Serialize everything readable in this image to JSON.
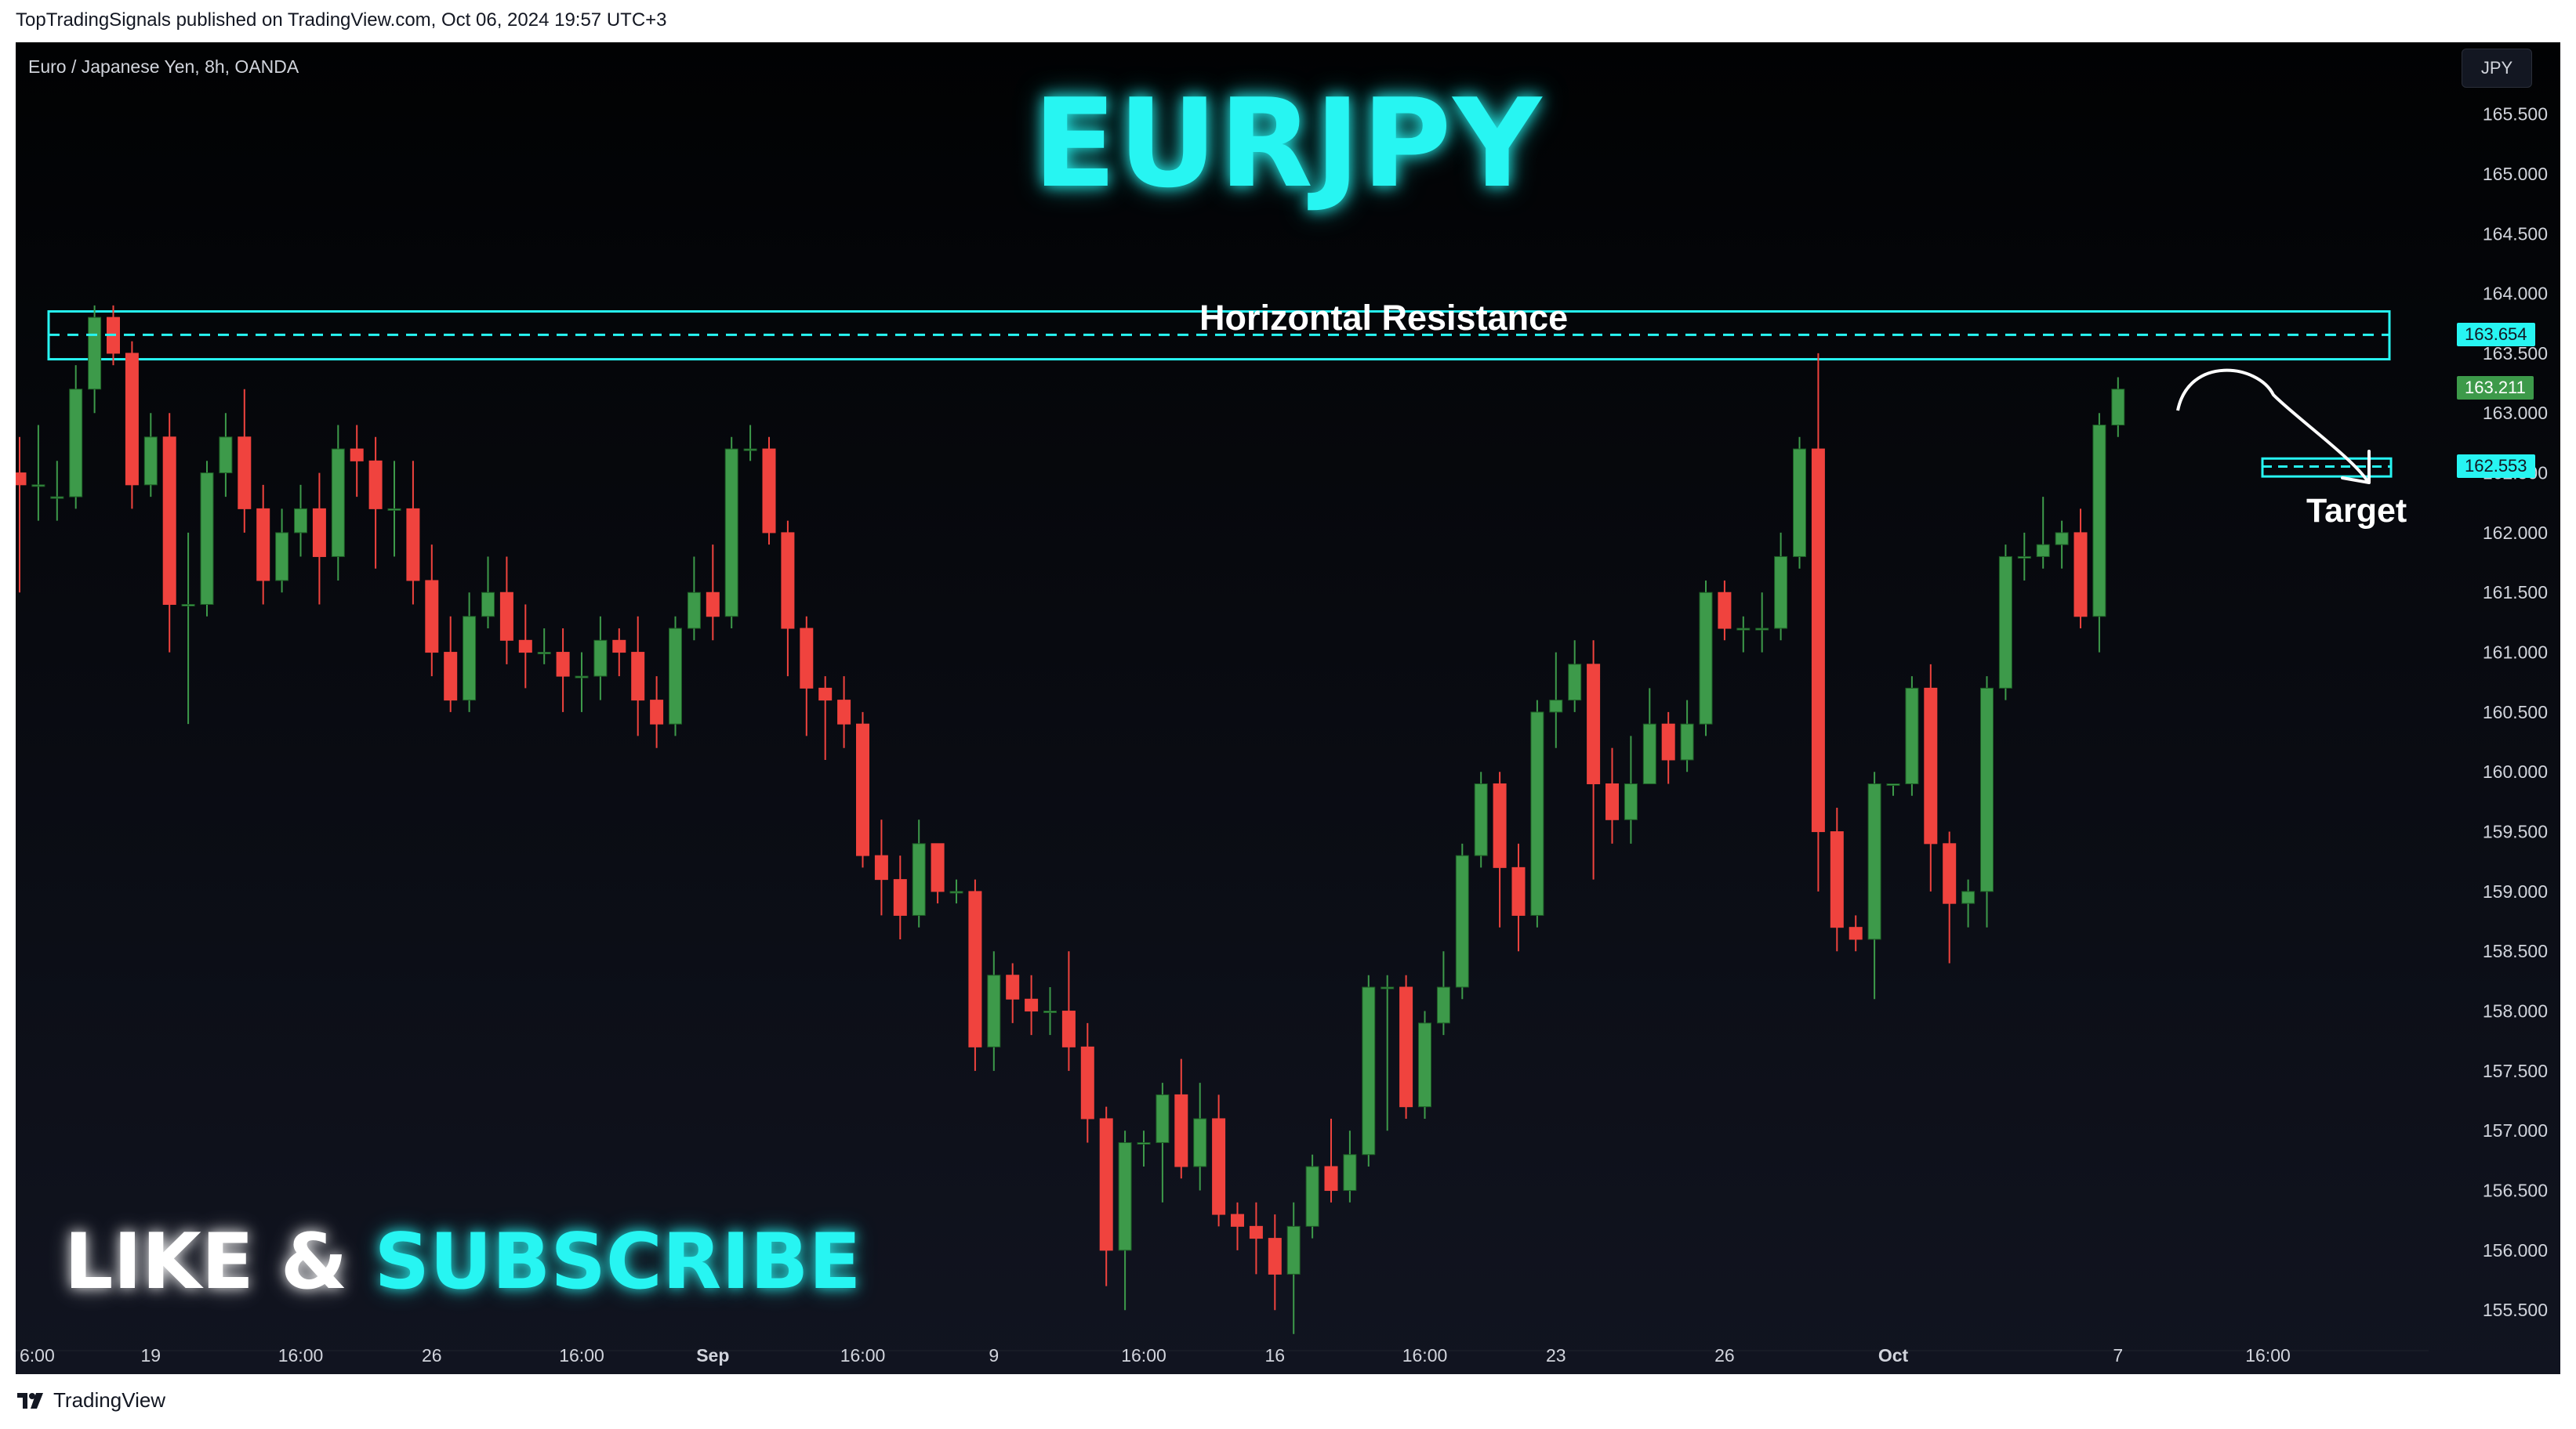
{
  "header": {
    "published_text": "TopTradingSignals published on TradingView.com, Oct 06, 2024 19:57 UTC+3"
  },
  "legend": {
    "symbol_text": "Euro / Japanese Yen, 8h, OANDA"
  },
  "currency_button": {
    "label": "JPY"
  },
  "annotations": {
    "title": "EURJPY",
    "resistance_label": "Horizontal Resistance",
    "target_label": "Target",
    "like_text": "LIKE &",
    "subscribe_text": "SUBSCRIBE"
  },
  "footer": {
    "brand": "TradingView"
  },
  "colors": {
    "up": "#26a69a",
    "up_fill": "#3d9a4a",
    "down": "#f0433e",
    "accent": "#27f5f2",
    "background": "#0b0d14"
  },
  "chart_data": {
    "type": "candlestick",
    "symbol": "EURJPY",
    "interval": "8h",
    "source": "OANDA",
    "y_axis": {
      "ylim": [
        155.2,
        166.1
      ],
      "tick_values": [
        155.5,
        156.0,
        156.5,
        157.0,
        157.5,
        158.0,
        158.5,
        159.0,
        159.5,
        160.0,
        160.5,
        161.0,
        161.5,
        162.0,
        162.5,
        163.0,
        163.5,
        164.0,
        164.5,
        165.0,
        165.5
      ],
      "tick_labels": [
        "155.500",
        "156.000",
        "156.500",
        "157.000",
        "157.500",
        "158.000",
        "158.500",
        "159.000",
        "159.500",
        "160.000",
        "160.500",
        "161.000",
        "161.500",
        "162.000",
        "162.500",
        "163.000",
        "163.500",
        "164.000",
        "164.500",
        "165.000",
        "165.500"
      ]
    },
    "x_axis": {
      "tick_labels": [
        {
          "label": "6:00",
          "bar": 0
        },
        {
          "label": "19",
          "bar": 7
        },
        {
          "label": "16:00",
          "bar": 15
        },
        {
          "label": "26",
          "bar": 22
        },
        {
          "label": "16:00",
          "bar": 30
        },
        {
          "label": "Sep",
          "bar": 37
        },
        {
          "label": "16:00",
          "bar": 45
        },
        {
          "label": "9",
          "bar": 52
        },
        {
          "label": "16:00",
          "bar": 60
        },
        {
          "label": "16",
          "bar": 67
        },
        {
          "label": "16:00",
          "bar": 75
        },
        {
          "label": "23",
          "bar": 82
        },
        {
          "label": "26",
          "bar": 91
        },
        {
          "label": "Oct",
          "bar": 100
        },
        {
          "label": "7",
          "bar": 112
        },
        {
          "label": "16:00",
          "bar": 120
        }
      ]
    },
    "candles": [
      [
        162.5,
        162.4,
        162.8,
        161.5
      ],
      [
        162.4,
        162.4,
        162.9,
        162.1
      ],
      [
        162.3,
        162.3,
        162.6,
        162.1
      ],
      [
        162.3,
        163.2,
        163.4,
        162.2
      ],
      [
        163.2,
        163.8,
        163.9,
        163.0
      ],
      [
        163.8,
        163.5,
        163.9,
        163.4
      ],
      [
        163.5,
        162.4,
        163.6,
        162.2
      ],
      [
        162.4,
        162.8,
        163.0,
        162.3
      ],
      [
        162.8,
        161.4,
        163.0,
        161.0
      ],
      [
        161.4,
        161.4,
        162.0,
        160.4
      ],
      [
        161.4,
        162.5,
        162.6,
        161.3
      ],
      [
        162.5,
        162.8,
        163.0,
        162.3
      ],
      [
        162.8,
        162.2,
        163.2,
        162.0
      ],
      [
        162.2,
        161.6,
        162.4,
        161.4
      ],
      [
        161.6,
        162.0,
        162.2,
        161.5
      ],
      [
        162.0,
        162.2,
        162.4,
        161.8
      ],
      [
        162.2,
        161.8,
        162.5,
        161.4
      ],
      [
        161.8,
        162.7,
        162.9,
        161.6
      ],
      [
        162.7,
        162.6,
        162.9,
        162.3
      ],
      [
        162.6,
        162.2,
        162.8,
        161.7
      ],
      [
        162.2,
        162.2,
        162.6,
        161.8
      ],
      [
        162.2,
        161.6,
        162.6,
        161.4
      ],
      [
        161.6,
        161.0,
        161.9,
        160.8
      ],
      [
        161.0,
        160.6,
        161.3,
        160.5
      ],
      [
        160.6,
        161.3,
        161.5,
        160.5
      ],
      [
        161.3,
        161.5,
        161.8,
        161.2
      ],
      [
        161.5,
        161.1,
        161.8,
        160.9
      ],
      [
        161.1,
        161.0,
        161.4,
        160.7
      ],
      [
        161.0,
        161.0,
        161.2,
        160.9
      ],
      [
        161.0,
        160.8,
        161.2,
        160.5
      ],
      [
        160.8,
        160.8,
        161.0,
        160.5
      ],
      [
        160.8,
        161.1,
        161.3,
        160.6
      ],
      [
        161.1,
        161.0,
        161.2,
        160.8
      ],
      [
        161.0,
        160.6,
        161.3,
        160.3
      ],
      [
        160.6,
        160.4,
        160.8,
        160.2
      ],
      [
        160.4,
        161.2,
        161.3,
        160.3
      ],
      [
        161.2,
        161.5,
        161.8,
        161.1
      ],
      [
        161.5,
        161.3,
        161.9,
        161.1
      ],
      [
        161.3,
        162.7,
        162.8,
        161.2
      ],
      [
        162.7,
        162.7,
        162.9,
        162.6
      ],
      [
        162.7,
        162.0,
        162.8,
        161.9
      ],
      [
        162.0,
        161.2,
        162.1,
        160.8
      ],
      [
        161.2,
        160.7,
        161.3,
        160.3
      ],
      [
        160.7,
        160.6,
        160.8,
        160.1
      ],
      [
        160.6,
        160.4,
        160.8,
        160.2
      ],
      [
        160.4,
        159.3,
        160.5,
        159.2
      ],
      [
        159.3,
        159.1,
        159.6,
        158.8
      ],
      [
        159.1,
        158.8,
        159.3,
        158.6
      ],
      [
        158.8,
        159.4,
        159.6,
        158.7
      ],
      [
        159.4,
        159.0,
        159.4,
        158.9
      ],
      [
        159.0,
        159.0,
        159.1,
        158.9
      ],
      [
        159.0,
        157.7,
        159.1,
        157.5
      ],
      [
        157.7,
        158.3,
        158.5,
        157.5
      ],
      [
        158.3,
        158.1,
        158.4,
        157.9
      ],
      [
        158.1,
        158.0,
        158.3,
        157.8
      ],
      [
        158.0,
        158.0,
        158.2,
        157.8
      ],
      [
        158.0,
        157.7,
        158.5,
        157.5
      ],
      [
        157.7,
        157.1,
        157.9,
        156.9
      ],
      [
        157.1,
        156.0,
        157.2,
        155.7
      ],
      [
        156.0,
        156.9,
        157.0,
        155.5
      ],
      [
        156.9,
        156.9,
        157.0,
        156.7
      ],
      [
        156.9,
        157.3,
        157.4,
        156.4
      ],
      [
        157.3,
        156.7,
        157.6,
        156.6
      ],
      [
        156.7,
        157.1,
        157.4,
        156.5
      ],
      [
        157.1,
        156.3,
        157.3,
        156.2
      ],
      [
        156.3,
        156.2,
        156.4,
        156.0
      ],
      [
        156.2,
        156.1,
        156.4,
        155.8
      ],
      [
        156.1,
        155.8,
        156.3,
        155.5
      ],
      [
        155.8,
        156.2,
        156.4,
        155.3
      ],
      [
        156.2,
        156.7,
        156.8,
        156.1
      ],
      [
        156.7,
        156.5,
        157.1,
        156.4
      ],
      [
        156.5,
        156.8,
        157.0,
        156.4
      ],
      [
        156.8,
        158.2,
        158.3,
        156.7
      ],
      [
        158.2,
        158.2,
        158.3,
        157.0
      ],
      [
        158.2,
        157.2,
        158.3,
        157.1
      ],
      [
        157.2,
        157.9,
        158.0,
        157.1
      ],
      [
        157.9,
        158.2,
        158.5,
        157.8
      ],
      [
        158.2,
        159.3,
        159.4,
        158.1
      ],
      [
        159.3,
        159.9,
        160.0,
        159.2
      ],
      [
        159.9,
        159.2,
        160.0,
        158.7
      ],
      [
        159.2,
        158.8,
        159.4,
        158.5
      ],
      [
        158.8,
        160.5,
        160.6,
        158.7
      ],
      [
        160.5,
        160.6,
        161.0,
        160.2
      ],
      [
        160.6,
        160.9,
        161.1,
        160.5
      ],
      [
        160.9,
        159.9,
        161.1,
        159.1
      ],
      [
        159.9,
        159.6,
        160.2,
        159.4
      ],
      [
        159.6,
        159.9,
        160.3,
        159.4
      ],
      [
        159.9,
        160.4,
        160.7,
        160.0
      ],
      [
        160.4,
        160.1,
        160.5,
        159.9
      ],
      [
        160.1,
        160.4,
        160.6,
        160.0
      ],
      [
        160.4,
        161.5,
        161.6,
        160.3
      ],
      [
        161.5,
        161.2,
        161.6,
        161.1
      ],
      [
        161.2,
        161.2,
        161.3,
        161.0
      ],
      [
        161.2,
        161.2,
        161.5,
        161.0
      ],
      [
        161.2,
        161.8,
        162.0,
        161.1
      ],
      [
        161.8,
        162.7,
        162.8,
        161.7
      ],
      [
        162.7,
        159.5,
        163.5,
        159.0
      ],
      [
        159.5,
        158.7,
        159.7,
        158.5
      ],
      [
        158.7,
        158.6,
        158.8,
        158.5
      ],
      [
        158.6,
        159.9,
        160.0,
        158.1
      ],
      [
        159.9,
        159.9,
        159.9,
        159.8
      ],
      [
        159.9,
        160.7,
        160.8,
        159.8
      ],
      [
        160.7,
        159.4,
        160.9,
        159.0
      ],
      [
        159.4,
        158.9,
        159.5,
        158.4
      ],
      [
        158.9,
        159.0,
        159.1,
        158.7
      ],
      [
        159.0,
        160.7,
        160.8,
        158.7
      ],
      [
        160.7,
        161.8,
        161.9,
        160.6
      ],
      [
        161.8,
        161.8,
        162.0,
        161.6
      ],
      [
        161.8,
        161.9,
        162.3,
        161.7
      ],
      [
        161.9,
        162.0,
        162.1,
        161.7
      ],
      [
        162.0,
        161.3,
        162.2,
        161.2
      ],
      [
        161.3,
        162.9,
        163.0,
        161.0
      ],
      [
        162.9,
        163.2,
        163.3,
        162.8
      ]
    ],
    "overlays": {
      "resistance_zone": [
        163.45,
        163.85
      ],
      "resistance_line": 163.654,
      "target_line": 162.553,
      "target_zone": [
        162.47,
        162.62
      ]
    },
    "price_labels": [
      {
        "text": "163.654",
        "value": 163.654,
        "role": "resistance"
      },
      {
        "text": "163.211",
        "value": 163.211,
        "role": "last"
      },
      {
        "text": "162.553",
        "value": 162.553,
        "role": "target"
      }
    ]
  }
}
